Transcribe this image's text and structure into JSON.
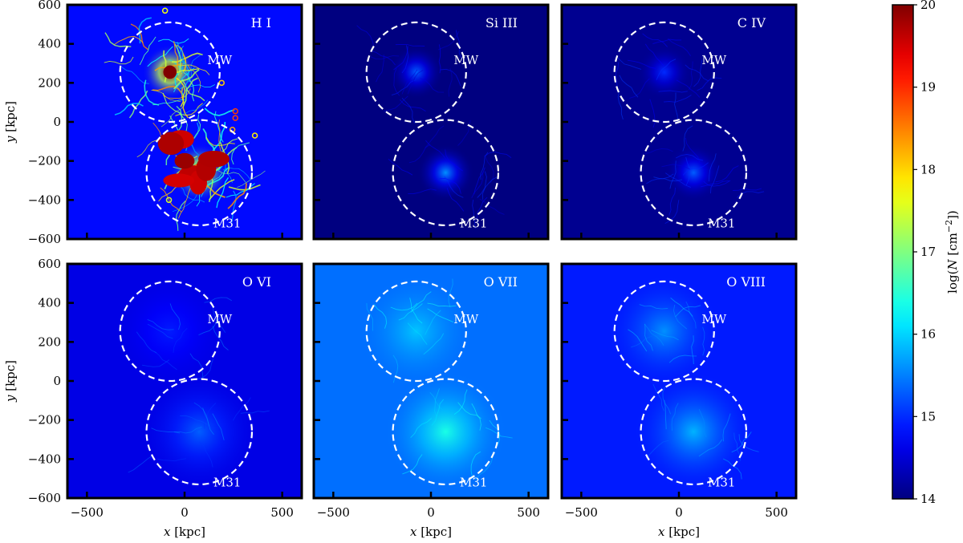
{
  "chart_data": {
    "type": "heatmap",
    "x_axis": {
      "label_symbol": "x",
      "label_unit": "[kpc]",
      "lim": [
        -600,
        600
      ],
      "ticks": [
        -500,
        0,
        500
      ],
      "tick_labels": [
        "−500",
        "0",
        "500"
      ]
    },
    "y_axis": {
      "label_symbol": "y",
      "label_unit": "[kpc]",
      "lim": [
        -600,
        600
      ],
      "ticks": [
        600,
        400,
        200,
        0,
        -200,
        -400,
        -600
      ],
      "tick_labels": [
        "600",
        "400",
        "200",
        "0",
        "−200",
        "−400",
        "−600"
      ]
    },
    "colorbar": {
      "label_prefix": "log(",
      "label_symbol": "N",
      "label_unit": " [cm",
      "label_exp": "−2",
      "label_suffix": "])",
      "vmin": 14,
      "vmax": 20,
      "ticks": [
        14,
        15,
        16,
        17,
        18,
        19,
        20
      ],
      "tick_labels": [
        "14",
        "15",
        "16",
        "17",
        "18",
        "19",
        "20"
      ],
      "colormap": "jet"
    },
    "galaxies": [
      {
        "name": "MW",
        "center": [
          -75,
          255
        ],
        "radius": 255
      },
      {
        "name": "M31",
        "center": [
          75,
          -260
        ],
        "radius": 270
      }
    ],
    "panels": [
      {
        "ion": "H I",
        "structure": "filaments",
        "level": 14.8,
        "mw_peak": 20.0,
        "m31_peak": 19.5
      },
      {
        "ion": "Si III",
        "structure": "sparse",
        "level": 14.0,
        "mw_peak": 15.3,
        "m31_peak": 15.6
      },
      {
        "ion": "C IV",
        "structure": "sparse",
        "level": 14.1,
        "mw_peak": 15.0,
        "m31_peak": 15.3
      },
      {
        "ion": "O VI",
        "structure": "diffuse",
        "level": 14.6,
        "mw_peak": 14.9,
        "m31_peak": 15.3
      },
      {
        "ion": "O VII",
        "structure": "diffuse",
        "level": 15.4,
        "mw_peak": 15.9,
        "m31_peak": 16.4
      },
      {
        "ion": "O VIII",
        "structure": "diffuse",
        "level": 14.9,
        "mw_peak": 15.6,
        "m31_peak": 15.8
      }
    ]
  }
}
